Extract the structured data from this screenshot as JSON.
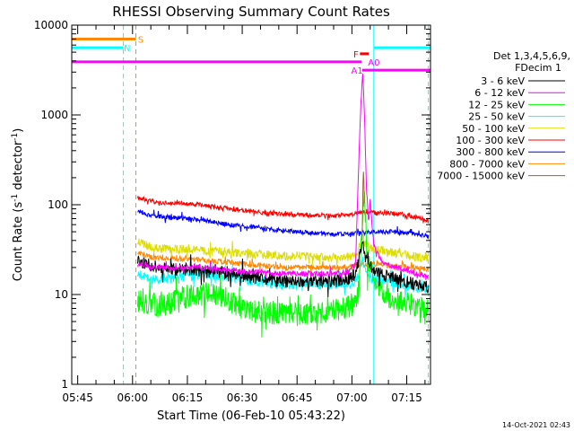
{
  "chart_data": {
    "type": "line",
    "title": "RHESSI Observing Summary Count Rates",
    "xlabel": "Start Time (06-Feb-10 05:43:22)",
    "ylabel_main": "Count Rate (s",
    "ylabel_sup1": "-1",
    "ylabel_mid": " detector",
    "ylabel_sup2": "-1",
    "ylabel_end": ")",
    "footer": "14-Oct-2021 02:43",
    "y_scale": "log",
    "ylim": [
      1,
      10000
    ],
    "xlim_min": [
      343.37,
      441.5
    ],
    "y_ticks": [
      {
        "v": 1,
        "label": "1"
      },
      {
        "v": 10,
        "label": "10"
      },
      {
        "v": 100,
        "label": "100"
      },
      {
        "v": 1000,
        "label": "1000"
      },
      {
        "v": 10000,
        "label": "10000"
      }
    ],
    "x_ticks": [
      {
        "v": 345,
        "label": "05:45"
      },
      {
        "v": 360,
        "label": "06:00"
      },
      {
        "v": 375,
        "label": "06:15"
      },
      {
        "v": 390,
        "label": "06:30"
      },
      {
        "v": 405,
        "label": "06:45"
      },
      {
        "v": 420,
        "label": "07:00"
      },
      {
        "v": 435,
        "label": "07:15"
      }
    ],
    "legend_header": [
      "Det 1,3,4,5,6,9,",
      "FDecim 1"
    ],
    "legend": [
      {
        "label": "3 - 6 keV",
        "color": "#000000"
      },
      {
        "label": "6 - 12 keV",
        "color": "#ff00ff"
      },
      {
        "label": "12 - 25 keV",
        "color": "#00ff00"
      },
      {
        "label": "25 - 50 keV",
        "color": "#00ffff"
      },
      {
        "label": "50 - 100 keV",
        "color": "#dddd00"
      },
      {
        "label": "100 - 300 keV",
        "color": "#ff0000"
      },
      {
        "label": "300 - 800 keV",
        "color": "#0000ff"
      },
      {
        "label": "800 - 7000 keV",
        "color": "#ff8800"
      },
      {
        "label": "7000 - 15000 keV",
        "color": "#996633"
      }
    ],
    "series_x_range": [
      361.4,
      441.0
    ],
    "series": [
      {
        "name": "3 - 6 keV",
        "color": "#000000",
        "noise": 0.07,
        "seed": 11,
        "points": [
          [
            361.4,
            24
          ],
          [
            365,
            21
          ],
          [
            370,
            19
          ],
          [
            376,
            19
          ],
          [
            380,
            18
          ],
          [
            385,
            18
          ],
          [
            390,
            16
          ],
          [
            395,
            15
          ],
          [
            400,
            14
          ],
          [
            405,
            14
          ],
          [
            410,
            14
          ],
          [
            415,
            14
          ],
          [
            419,
            15
          ],
          [
            421,
            17
          ],
          [
            422,
            25
          ],
          [
            423,
            40
          ],
          [
            423.5,
            25
          ],
          [
            424,
            30
          ],
          [
            425,
            22
          ],
          [
            426,
            18
          ],
          [
            430,
            16
          ],
          [
            434,
            14
          ],
          [
            438,
            13
          ],
          [
            441,
            12
          ]
        ]
      },
      {
        "name": "6 - 12 keV",
        "color": "#ff00ff",
        "noise": 0.03,
        "seed": 12,
        "points": [
          [
            361.4,
            22
          ],
          [
            365,
            20
          ],
          [
            370,
            20
          ],
          [
            376,
            20
          ],
          [
            380,
            20
          ],
          [
            385,
            19
          ],
          [
            390,
            18
          ],
          [
            395,
            18
          ],
          [
            400,
            17
          ],
          [
            405,
            17
          ],
          [
            410,
            17
          ],
          [
            415,
            17
          ],
          [
            419,
            18
          ],
          [
            421,
            22
          ],
          [
            422,
            400
          ],
          [
            422.5,
            1500
          ],
          [
            423,
            3000
          ],
          [
            423.5,
            800
          ],
          [
            424,
            150
          ],
          [
            424.6,
            60
          ],
          [
            425,
            120
          ],
          [
            425.4,
            70
          ],
          [
            426,
            35
          ],
          [
            428,
            24
          ],
          [
            430,
            21
          ],
          [
            434,
            19
          ],
          [
            438,
            17
          ],
          [
            441,
            16
          ]
        ]
      },
      {
        "name": "12 - 25 keV",
        "color": "#00ff00",
        "noise": 0.13,
        "seed": 13,
        "points": [
          [
            361.4,
            8.5
          ],
          [
            364,
            8
          ],
          [
            367,
            7.5
          ],
          [
            370,
            8
          ],
          [
            373,
            9
          ],
          [
            376,
            10
          ],
          [
            380,
            10.5
          ],
          [
            383,
            9.5
          ],
          [
            386,
            8.5
          ],
          [
            390,
            7
          ],
          [
            394,
            6.5
          ],
          [
            398,
            6.2
          ],
          [
            402,
            6
          ],
          [
            406,
            6
          ],
          [
            410,
            6.2
          ],
          [
            414,
            6.5
          ],
          [
            418,
            7
          ],
          [
            420,
            7.5
          ],
          [
            421,
            8
          ],
          [
            422,
            12
          ],
          [
            423,
            100
          ],
          [
            423.4,
            140
          ],
          [
            423.8,
            60
          ],
          [
            424,
            30
          ],
          [
            425,
            20
          ],
          [
            426,
            14
          ],
          [
            428,
            11
          ],
          [
            431,
            9
          ],
          [
            434,
            8
          ],
          [
            438,
            7.5
          ],
          [
            441,
            6.5
          ]
        ]
      },
      {
        "name": "25 - 50 keV",
        "color": "#00ffff",
        "noise": 0.06,
        "seed": 14,
        "points": [
          [
            361.4,
            17
          ],
          [
            365,
            15
          ],
          [
            370,
            15
          ],
          [
            375,
            16
          ],
          [
            380,
            17
          ],
          [
            385,
            16
          ],
          [
            390,
            15
          ],
          [
            395,
            14
          ],
          [
            400,
            13
          ],
          [
            405,
            13
          ],
          [
            410,
            13
          ],
          [
            415,
            13
          ],
          [
            419,
            13
          ],
          [
            421,
            14
          ],
          [
            422,
            16
          ],
          [
            423,
            24
          ],
          [
            423.5,
            19
          ],
          [
            424,
            16
          ],
          [
            426,
            15
          ],
          [
            430,
            14
          ],
          [
            434,
            13
          ],
          [
            438,
            12
          ],
          [
            441,
            11
          ]
        ]
      },
      {
        "name": "50 - 100 keV",
        "color": "#dddd00",
        "noise": 0.05,
        "seed": 15,
        "points": [
          [
            361.4,
            40
          ],
          [
            363,
            36
          ],
          [
            366,
            33
          ],
          [
            370,
            32
          ],
          [
            375,
            32
          ],
          [
            380,
            31
          ],
          [
            385,
            30
          ],
          [
            390,
            29
          ],
          [
            395,
            28
          ],
          [
            400,
            27
          ],
          [
            405,
            27
          ],
          [
            410,
            26
          ],
          [
            415,
            26
          ],
          [
            419,
            26
          ],
          [
            421,
            28
          ],
          [
            422,
            33
          ],
          [
            423,
            45
          ],
          [
            424,
            35
          ],
          [
            426,
            32
          ],
          [
            430,
            30
          ],
          [
            434,
            28
          ],
          [
            438,
            26
          ],
          [
            441,
            25
          ]
        ]
      },
      {
        "name": "100 - 300 keV",
        "color": "#ff0000",
        "noise": 0.025,
        "seed": 16,
        "points": [
          [
            361.4,
            122
          ],
          [
            364,
            112
          ],
          [
            367,
            106
          ],
          [
            370,
            104
          ],
          [
            373,
            105
          ],
          [
            376,
            103
          ],
          [
            380,
            98
          ],
          [
            385,
            92
          ],
          [
            390,
            87
          ],
          [
            395,
            82
          ],
          [
            400,
            79
          ],
          [
            405,
            77
          ],
          [
            410,
            76
          ],
          [
            415,
            75
          ],
          [
            418,
            76
          ],
          [
            421,
            79
          ],
          [
            423,
            82
          ],
          [
            425,
            82
          ],
          [
            428,
            81
          ],
          [
            431,
            80
          ],
          [
            434,
            77
          ],
          [
            438,
            72
          ],
          [
            441,
            66
          ]
        ]
      },
      {
        "name": "300 - 800 keV",
        "color": "#0000ff",
        "noise": 0.025,
        "seed": 17,
        "points": [
          [
            361.4,
            85
          ],
          [
            364,
            78
          ],
          [
            367,
            74
          ],
          [
            370,
            72
          ],
          [
            373,
            71
          ],
          [
            376,
            70
          ],
          [
            380,
            66
          ],
          [
            385,
            61
          ],
          [
            390,
            58
          ],
          [
            395,
            55
          ],
          [
            400,
            52
          ],
          [
            405,
            50
          ],
          [
            410,
            48
          ],
          [
            415,
            47
          ],
          [
            418,
            47
          ],
          [
            421,
            48
          ],
          [
            424,
            49
          ],
          [
            427,
            50
          ],
          [
            430,
            50
          ],
          [
            434,
            49
          ],
          [
            438,
            47
          ],
          [
            441,
            44
          ]
        ]
      },
      {
        "name": "800 - 7000 keV",
        "color": "#ff8800",
        "noise": 0.03,
        "seed": 18,
        "points": [
          [
            361.4,
            30
          ],
          [
            365,
            26
          ],
          [
            370,
            25
          ],
          [
            375,
            25
          ],
          [
            380,
            24
          ],
          [
            385,
            23
          ],
          [
            390,
            22
          ],
          [
            395,
            21
          ],
          [
            400,
            20
          ],
          [
            405,
            20
          ],
          [
            410,
            20
          ],
          [
            415,
            20
          ],
          [
            419,
            20
          ],
          [
            421,
            21
          ],
          [
            423,
            22
          ],
          [
            425,
            22
          ],
          [
            428,
            22
          ],
          [
            431,
            21
          ],
          [
            434,
            21
          ],
          [
            438,
            20
          ],
          [
            441,
            19
          ]
        ]
      },
      {
        "name": "7000 - 15000 keV",
        "color": "#996633",
        "noise": 0.0,
        "seed": 19,
        "points": [
          [
            422.8,
            40
          ],
          [
            423.1,
            260
          ],
          [
            423.3,
            180
          ],
          [
            423.5,
            60
          ]
        ]
      }
    ],
    "state_bars": [
      {
        "label": "S",
        "color": "#ff8800",
        "y": 7000,
        "x1": 343.37,
        "x2": 360.9,
        "label_x": 361.5,
        "label_y": 7000
      },
      {
        "label": "N",
        "color": "#00ffff",
        "y": 5600,
        "x1": 343.37,
        "x2": 357.5,
        "label_x": 357.6,
        "label_y": 5600
      },
      {
        "label": "F",
        "color": "#ff0000",
        "y": 4800,
        "x1": 422.2,
        "x2": 424.6,
        "label_x": 420.4,
        "label_y": 4800
      },
      {
        "label": "A0",
        "color": "#ff00ff",
        "y": 3900,
        "x1": 343.37,
        "x2": 422.6,
        "label_x": 424.4,
        "label_y": 3900
      },
      {
        "label": "A1",
        "color": "#ff00ff",
        "y": 3150,
        "x1": 422.8,
        "x2": 441.5,
        "label_x": 419.8,
        "label_y": 3150
      },
      {
        "label": "",
        "color": "#00ffff",
        "y": 5600,
        "x1": 426.0,
        "x2": 441.5,
        "label_x": 0,
        "label_y": 0
      }
    ],
    "vlines": [
      {
        "x": 343.37,
        "color": "#00ffff",
        "style": "solid"
      },
      {
        "x": 357.5,
        "color": "#00ffff",
        "style": "dashed"
      },
      {
        "x": 360.9,
        "color": "#ff8800",
        "style": "dashed"
      },
      {
        "x": 426.0,
        "color": "#00ffff",
        "style": "solid"
      },
      {
        "x": 440.9,
        "color": "#00ffff",
        "style": "dashed"
      }
    ]
  }
}
